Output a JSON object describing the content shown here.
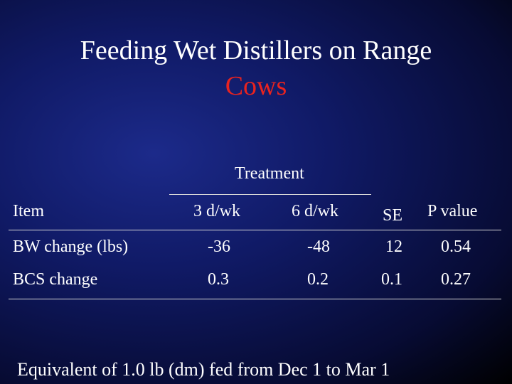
{
  "title": {
    "line1": "Feeding Wet Distillers on Range",
    "line2": "Cows"
  },
  "table": {
    "group_header": "Treatment",
    "headers": {
      "item": "Item",
      "t1": "3 d/wk",
      "t2": "6 d/wk",
      "se": "SE",
      "p": "P value"
    },
    "rows": [
      {
        "item": "BW change (lbs)",
        "t1": "-36",
        "t2": "-48",
        "se": "12",
        "p": "0.54"
      },
      {
        "item": "BCS change",
        "t1": "0.3",
        "t2": "0.2",
        "se": "0.1",
        "p": "0.27"
      }
    ]
  },
  "footer": "Equivalent of 1.0 lb (dm) fed from Dec 1 to Mar 1",
  "colors": {
    "background": "#0b1250",
    "title_text": "#ffffff",
    "title_accent": "#e8231f",
    "body_text": "#ffffff"
  }
}
